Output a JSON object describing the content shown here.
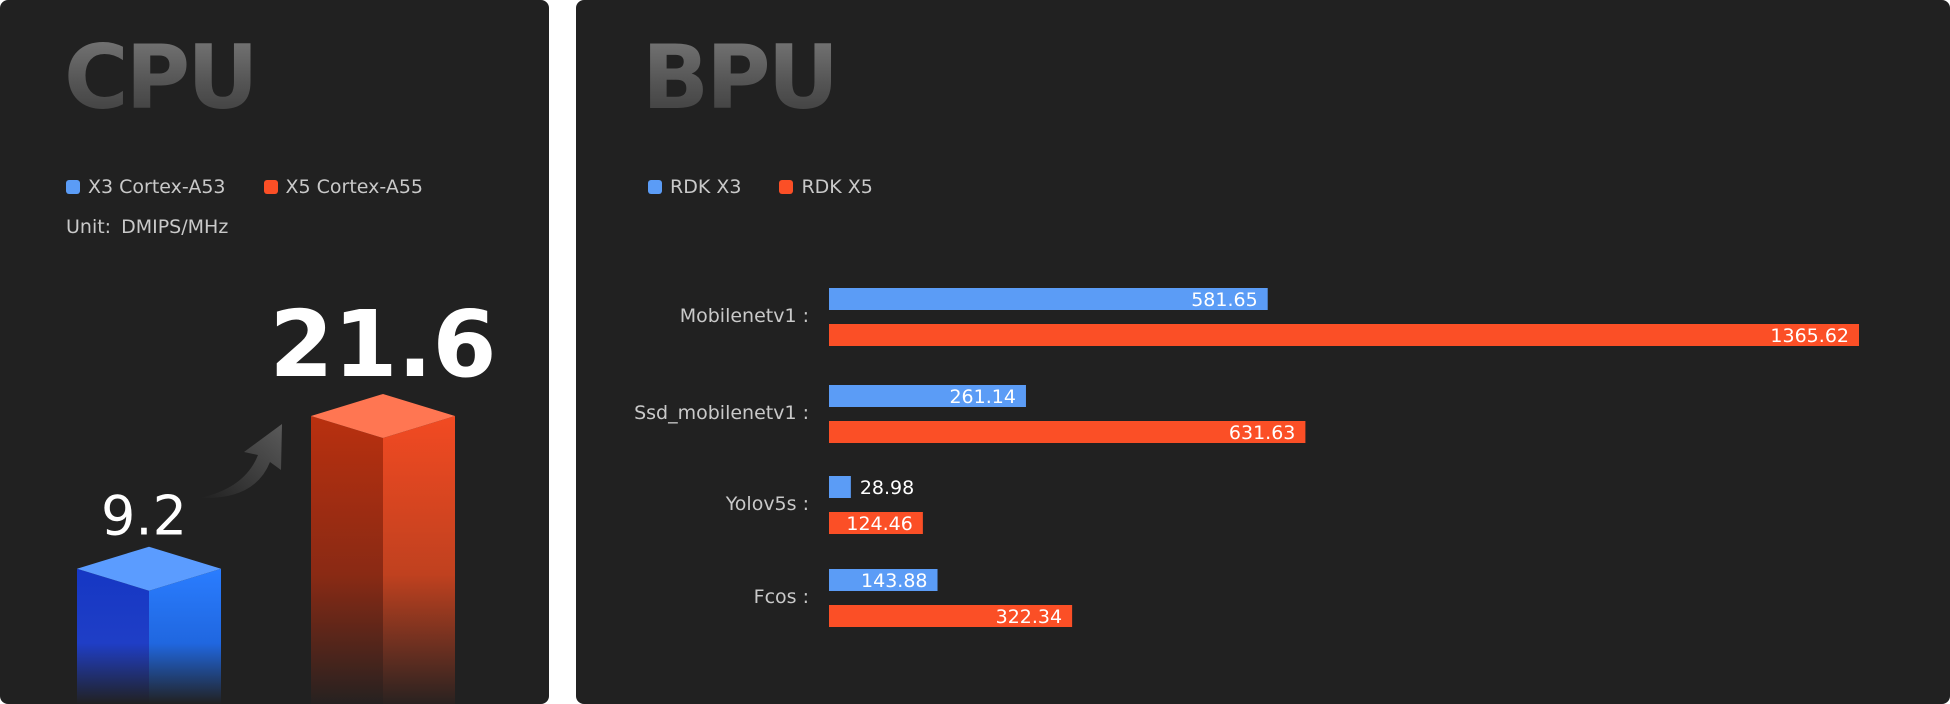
{
  "colors": {
    "blue": "#5b9cf6",
    "red": "#fb4f26",
    "background": "#212121"
  },
  "cpu": {
    "title": "CPU",
    "legend": [
      "X3 Cortex-A53",
      "X5 Cortex-A55"
    ],
    "unit_label": "Unit:",
    "unit_value": "DMIPS/MHz",
    "arrow_icon": "arrow-up-right-icon"
  },
  "bpu": {
    "title": "BPU",
    "legend": [
      "RDK X3",
      "RDK X5"
    ]
  },
  "chart_data": [
    {
      "type": "bar",
      "title": "CPU",
      "categories": [
        "X3 Cortex-A53",
        "X5 Cortex-A55"
      ],
      "values": [
        9.2,
        21.6
      ],
      "value_labels": [
        "9.2",
        "21.6"
      ],
      "unit": "DMIPS/MHz"
    },
    {
      "type": "bar",
      "orientation": "horizontal",
      "title": "BPU",
      "categories": [
        "Mobilenetv1 :",
        "Ssd_mobilenetv1 :",
        "Yolov5s :",
        "Fcos :"
      ],
      "series": [
        {
          "name": "RDK X3",
          "values": [
            581.65,
            261.14,
            28.98,
            143.88
          ],
          "labels": [
            "581.65",
            "261.14",
            "28.98",
            "143.88"
          ]
        },
        {
          "name": "RDK X5",
          "values": [
            1365.62,
            631.63,
            124.46,
            322.34
          ],
          "labels": [
            "1365.62",
            "631.63",
            "124.46",
            "322.34"
          ]
        }
      ],
      "xlim": [
        0,
        1365.62
      ]
    }
  ]
}
